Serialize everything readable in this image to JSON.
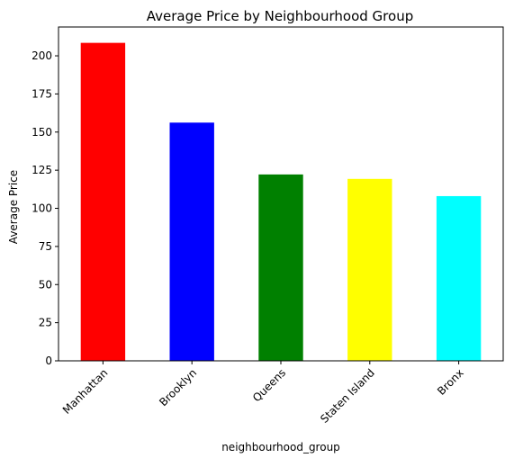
{
  "chart_data": {
    "type": "bar",
    "title": "Average Price by Neighbourhood Group",
    "xlabel": "neighbourhood_group",
    "ylabel": "Average Price",
    "categories": [
      "Manhattan",
      "Brooklyn",
      "Queens",
      "Staten Island",
      "Bronx"
    ],
    "values": [
      208.5,
      156.2,
      122.2,
      119.3,
      108.0
    ],
    "colors": [
      "#ff0000",
      "#0000ff",
      "#008000",
      "#ffff00",
      "#00ffff"
    ],
    "ylim": [
      0,
      218.9
    ],
    "yticks": [
      0,
      25,
      50,
      75,
      100,
      125,
      150,
      175,
      200
    ],
    "ytick_labels": [
      "0",
      "25",
      "50",
      "75",
      "100",
      "125",
      "150",
      "175",
      "200"
    ],
    "xtick_rotation_deg": 45,
    "grid": false,
    "legend": "none"
  }
}
